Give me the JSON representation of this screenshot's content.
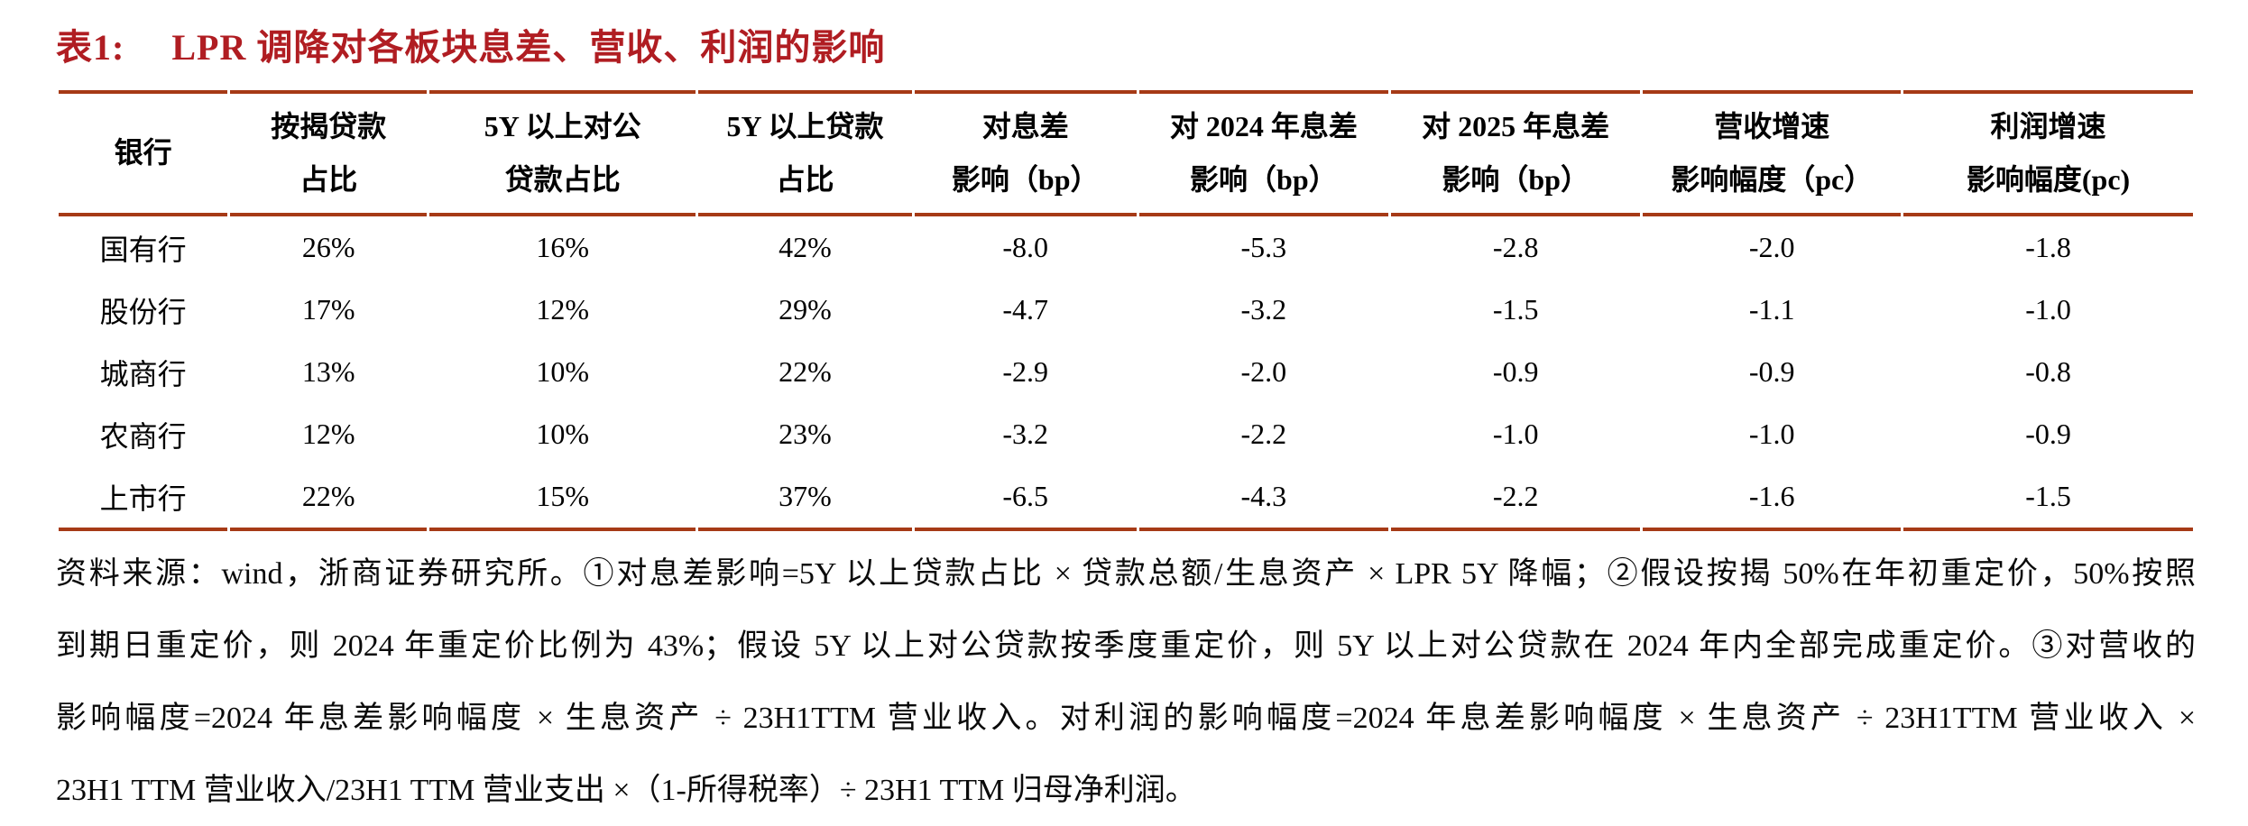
{
  "title": {
    "label": "表1:",
    "text": "LPR 调降对各板块息差、营收、利润的影响"
  },
  "colors": {
    "title_red": "#b01d22",
    "rule_red": "#a63a16"
  },
  "table": {
    "columns": [
      {
        "line1": "银行",
        "line2": ""
      },
      {
        "line1": "按揭贷款",
        "line2": "占比"
      },
      {
        "line1": "5Y 以上对公",
        "line2": "贷款占比"
      },
      {
        "line1": "5Y 以上贷款",
        "line2": "占比"
      },
      {
        "line1": "对息差",
        "line2": "影响（bp）"
      },
      {
        "line1": "对 2024 年息差",
        "line2": "影响（bp）"
      },
      {
        "line1": "对 2025 年息差",
        "line2": "影响（bp）"
      },
      {
        "line1": "营收增速",
        "line2": "影响幅度（pc）"
      },
      {
        "line1": "利润增速",
        "line2": "影响幅度(pc)"
      }
    ],
    "rows": [
      {
        "bank": "国有行",
        "values": [
          "26%",
          "16%",
          "42%",
          "-8.0",
          "-5.3",
          "-2.8",
          "-2.0",
          "-1.8"
        ]
      },
      {
        "bank": "股份行",
        "values": [
          "17%",
          "12%",
          "29%",
          "-4.7",
          "-3.2",
          "-1.5",
          "-1.1",
          "-1.0"
        ]
      },
      {
        "bank": "城商行",
        "values": [
          "13%",
          "10%",
          "22%",
          "-2.9",
          "-2.0",
          "-0.9",
          "-0.9",
          "-0.8"
        ]
      },
      {
        "bank": "农商行",
        "values": [
          "12%",
          "10%",
          "23%",
          "-3.2",
          "-2.2",
          "-1.0",
          "-1.0",
          "-0.9"
        ]
      },
      {
        "bank": "上市行",
        "values": [
          "22%",
          "15%",
          "37%",
          "-6.5",
          "-4.3",
          "-2.2",
          "-1.6",
          "-1.5"
        ]
      }
    ]
  },
  "footnote": {
    "lines": [
      "资料来源：wind，浙商证券研究所。①对息差影响=5Y 以上贷款占比 × 贷款总额/生息资产 × LPR 5Y 降幅；②假设按揭 50%在年初重定价，50%按照",
      "到期日重定价，则 2024 年重定价比例为 43%；假设 5Y 以上对公贷款按季度重定价，则 5Y 以上对公贷款在 2024 年内全部完成重定价。③对营收的",
      "影响幅度=2024 年息差影响幅度 × 生息资产 ÷ 23H1TTM 营业收入。对利润的影响幅度=2024 年息差影响幅度 × 生息资产 ÷ 23H1TTM 营业收入 ×",
      "23H1 TTM 营业收入/23H1 TTM 营业支出 ×（1-所得税率）÷ 23H1 TTM 归母净利润。"
    ]
  }
}
